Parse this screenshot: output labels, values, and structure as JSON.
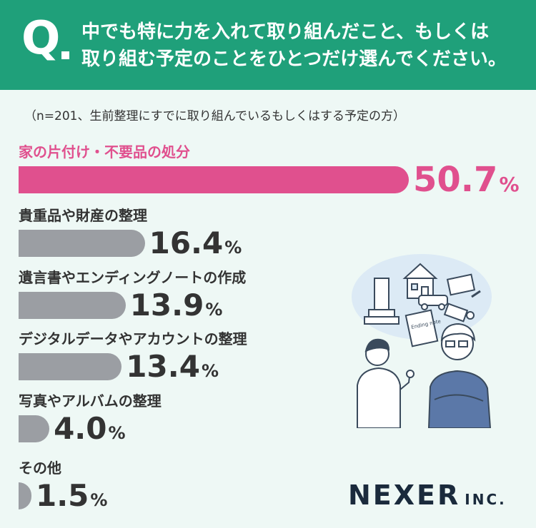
{
  "header": {
    "q_label": "Q",
    "question_line1": "中でも特に力を入れて取り組んだこと、もしくは",
    "question_line2": "取り組む予定のことをひとつだけ選んでください。"
  },
  "note": "（n=201、生前整理にすでに取り組んでいるもしくはする予定の方）",
  "chart_data": {
    "type": "bar",
    "orientation": "horizontal",
    "title": "",
    "unit": "%",
    "categories": [
      "家の片付け・不要品の処分",
      "貴重品や財産の整理",
      "遺言書やエンディングノートの作成",
      "デジタルデータやアカウントの整理",
      "写真やアルバムの整理",
      "その他"
    ],
    "values": [
      50.7,
      16.4,
      13.9,
      13.4,
      4.0,
      1.5
    ],
    "display_values": [
      "50.7",
      "16.4",
      "13.9",
      "13.4",
      "4.0",
      "1.5"
    ],
    "highlight_index": 0,
    "xlim": [
      0,
      50.7
    ],
    "colors": {
      "highlight": "#e0508e",
      "default": "#9b9ea3"
    }
  },
  "illustration": {
    "note_card_text": "Ending note"
  },
  "logo": {
    "main": "NEXER",
    "sub": "INC."
  }
}
